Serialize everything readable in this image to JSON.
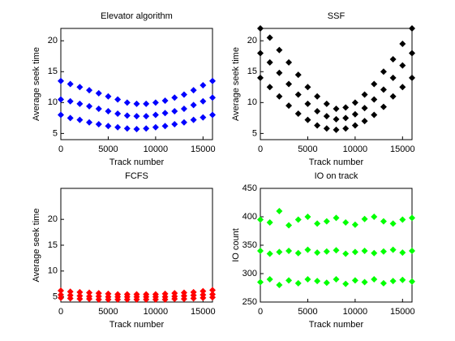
{
  "chart_data": [
    {
      "type": "scatter",
      "title": "Elevator algorithm",
      "xlabel": "Track number",
      "ylabel": "Average seek time",
      "xlim": [
        0,
        16000
      ],
      "xticks": [
        0,
        5000,
        10000,
        15000
      ],
      "ylim": [
        4,
        22
      ],
      "yticks": [
        5,
        10,
        15,
        20
      ],
      "x": [
        0,
        1000,
        2000,
        3000,
        4000,
        5000,
        6000,
        7000,
        8000,
        9000,
        10000,
        11000,
        12000,
        13000,
        14000,
        15000,
        16000,
        0,
        1000,
        2000,
        3000,
        4000,
        5000,
        6000,
        7000,
        8000,
        9000,
        10000,
        11000,
        12000,
        13000,
        14000,
        15000,
        16000,
        0,
        1000,
        2000,
        3000,
        4000,
        5000,
        6000,
        7000,
        8000,
        9000,
        10000,
        11000,
        12000,
        13000,
        14000,
        15000,
        16000
      ],
      "series": [
        {
          "color": "#0000ff",
          "values": [
            13.5,
            13,
            12.5,
            12,
            11.5,
            11,
            10.5,
            10,
            9.8,
            9.8,
            10,
            10.3,
            10.8,
            11.3,
            12,
            12.8,
            13.5,
            10.5,
            10.2,
            9.8,
            9.4,
            9,
            8.6,
            8.2,
            7.9,
            7.8,
            7.8,
            8,
            8.3,
            8.6,
            9,
            9.6,
            10.2,
            10.8,
            8,
            7.5,
            7.2,
            6.8,
            6.5,
            6.2,
            6,
            5.8,
            5.7,
            5.8,
            6,
            6.2,
            6.5,
            6.8,
            7.2,
            7.6,
            8
          ]
        }
      ]
    },
    {
      "type": "scatter",
      "title": "SSF",
      "xlabel": "Track number",
      "ylabel": "Average seek time",
      "xlim": [
        0,
        16000
      ],
      "xticks": [
        0,
        5000,
        10000,
        15000
      ],
      "ylim": [
        4,
        22
      ],
      "yticks": [
        5,
        10,
        15,
        20
      ],
      "x": [
        0,
        1000,
        2000,
        3000,
        4000,
        5000,
        6000,
        7000,
        8000,
        9000,
        10000,
        11000,
        12000,
        13000,
        14000,
        15000,
        16000,
        0,
        1000,
        2000,
        3000,
        4000,
        5000,
        6000,
        7000,
        8000,
        9000,
        10000,
        11000,
        12000,
        13000,
        14000,
        15000,
        16000,
        0,
        1000,
        2000,
        3000,
        4000,
        5000,
        6000,
        7000,
        8000,
        9000,
        10000,
        11000,
        12000,
        13000,
        14000,
        15000,
        16000
      ],
      "series": [
        {
          "color": "#000000",
          "values": [
            22,
            20.5,
            18.5,
            16.5,
            14.5,
            12.5,
            11,
            9.8,
            9,
            9.2,
            10,
            11.3,
            13,
            15,
            17,
            19.5,
            22,
            18,
            16.5,
            14.8,
            13,
            11.3,
            9.8,
            8.6,
            7.8,
            7.3,
            7.5,
            8.1,
            9.1,
            10.5,
            12.1,
            14,
            16,
            18,
            14,
            12.5,
            11,
            9.5,
            8.2,
            7.2,
            6.3,
            5.8,
            5.6,
            5.8,
            6.3,
            7,
            8,
            9.3,
            11,
            12.5,
            14
          ]
        }
      ]
    },
    {
      "type": "scatter",
      "title": "FCFS",
      "xlabel": "Track number",
      "ylabel": "Average seek time",
      "xlim": [
        0,
        16000
      ],
      "xticks": [
        0,
        5000,
        10000,
        15000
      ],
      "ylim": [
        4,
        26
      ],
      "yticks": [
        5,
        10,
        15,
        20
      ],
      "x": [
        0,
        1000,
        2000,
        3000,
        4000,
        5000,
        6000,
        7000,
        8000,
        9000,
        10000,
        11000,
        12000,
        13000,
        14000,
        15000,
        16000,
        0,
        1000,
        2000,
        3000,
        4000,
        5000,
        6000,
        7000,
        8000,
        9000,
        10000,
        11000,
        12000,
        13000,
        14000,
        15000,
        16000,
        0,
        1000,
        2000,
        3000,
        4000,
        5000,
        6000,
        7000,
        8000,
        9000,
        10000,
        11000,
        12000,
        13000,
        14000,
        15000,
        16000
      ],
      "series": [
        {
          "color": "#ff0000",
          "values": [
            6.2,
            6,
            5.9,
            5.8,
            5.7,
            5.6,
            5.5,
            5.5,
            5.5,
            5.5,
            5.5,
            5.6,
            5.7,
            5.8,
            5.9,
            6.1,
            6.3,
            5.4,
            5.3,
            5.2,
            5.1,
            5.1,
            5,
            5,
            5,
            5,
            5,
            5,
            5,
            5.1,
            5.2,
            5.3,
            5.4,
            5.5,
            4.8,
            4.7,
            4.6,
            4.6,
            4.5,
            4.5,
            4.5,
            4.5,
            4.5,
            4.5,
            4.5,
            4.5,
            4.6,
            4.6,
            4.7,
            4.8,
            4.9
          ]
        }
      ]
    },
    {
      "type": "scatter",
      "title": "IO on track",
      "xlabel": "Track number",
      "ylabel": "IO count",
      "xlim": [
        0,
        16000
      ],
      "xticks": [
        0,
        5000,
        10000,
        15000
      ],
      "ylim": [
        250,
        450
      ],
      "yticks": [
        250,
        300,
        350,
        400,
        450
      ],
      "x": [
        0,
        1000,
        2000,
        3000,
        4000,
        5000,
        6000,
        7000,
        8000,
        9000,
        10000,
        11000,
        12000,
        13000,
        14000,
        15000,
        16000,
        0,
        1000,
        2000,
        3000,
        4000,
        5000,
        6000,
        7000,
        8000,
        9000,
        10000,
        11000,
        12000,
        13000,
        14000,
        15000,
        16000,
        0,
        1000,
        2000,
        3000,
        4000,
        5000,
        6000,
        7000,
        8000,
        9000,
        10000,
        11000,
        12000,
        13000,
        14000,
        15000,
        16000
      ],
      "series": [
        {
          "color": "#00ff00",
          "values": [
            395,
            390,
            410,
            385,
            395,
            400,
            388,
            392,
            398,
            390,
            386,
            396,
            400,
            392,
            388,
            395,
            398,
            340,
            335,
            338,
            340,
            336,
            342,
            337,
            339,
            341,
            335,
            338,
            340,
            336,
            339,
            342,
            337,
            340,
            285,
            290,
            280,
            288,
            283,
            290,
            287,
            284,
            290,
            282,
            288,
            285,
            290,
            283,
            287,
            289,
            286
          ]
        }
      ]
    }
  ]
}
